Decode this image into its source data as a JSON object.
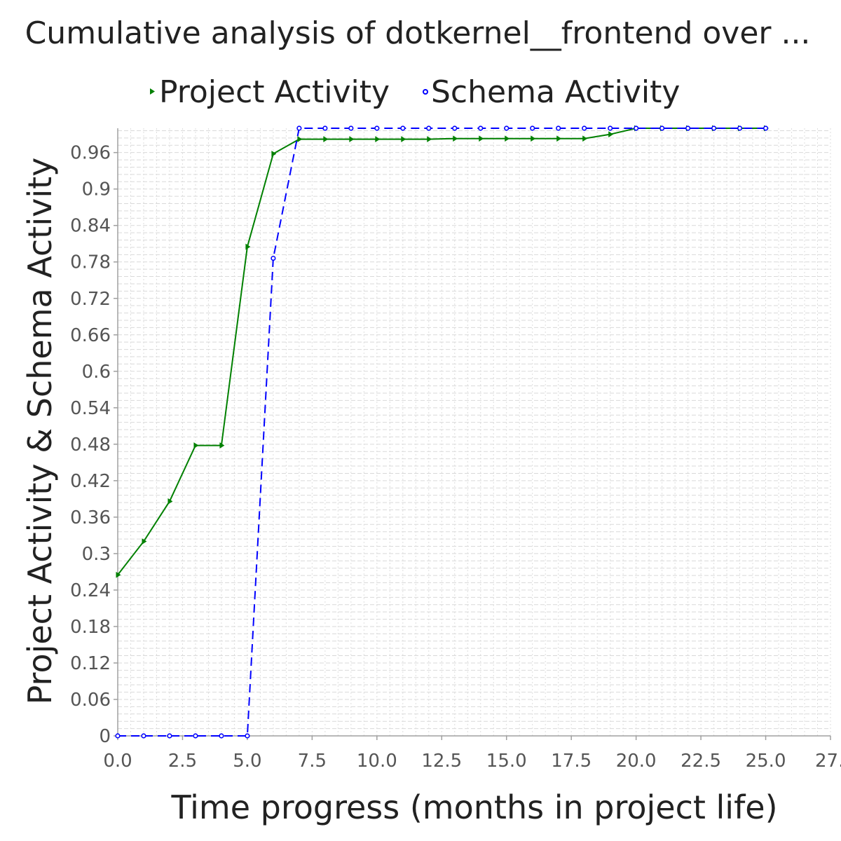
{
  "chart_data": {
    "type": "line",
    "title": "Cumulative analysis of dotkernel__frontend over ...",
    "xlabel": "Time progress (months in project life)",
    "ylabel": "Project Activity & Schema Activity",
    "xlim": [
      0,
      27.5
    ],
    "ylim": [
      0,
      1.0
    ],
    "x_ticks": [
      "0.0",
      "2.5",
      "5.0",
      "7.5",
      "10.0",
      "12.5",
      "15.0",
      "17.5",
      "20.0",
      "22.5",
      "25.0",
      "27."
    ],
    "y_ticks": [
      "0",
      "0.06",
      "0.12",
      "0.18",
      "0.24",
      "0.3",
      "0.36",
      "0.42",
      "0.48",
      "0.54",
      "0.6",
      "0.66",
      "0.72",
      "0.78",
      "0.84",
      "0.9",
      "0.96"
    ],
    "grid": true,
    "legend_position": "top",
    "series": [
      {
        "name": "Project Activity",
        "color": "#008000",
        "line_style": "solid",
        "marker": "triangle-right",
        "x": [
          0,
          1,
          2,
          3,
          4,
          5,
          6,
          7,
          8,
          9,
          10,
          11,
          12,
          13,
          14,
          15,
          16,
          17,
          18,
          19,
          20,
          21,
          22,
          23,
          24,
          25
        ],
        "values": [
          0.265,
          0.32,
          0.386,
          0.478,
          0.478,
          0.805,
          0.958,
          0.982,
          0.982,
          0.982,
          0.982,
          0.982,
          0.982,
          0.983,
          0.983,
          0.983,
          0.983,
          0.983,
          0.983,
          0.99,
          1.0,
          1.0,
          1.0,
          1.0,
          1.0,
          1.0
        ]
      },
      {
        "name": "Schema Activity",
        "color": "#0000ff",
        "line_style": "dashed",
        "marker": "circle",
        "x": [
          0,
          1,
          2,
          3,
          4,
          5,
          6,
          7,
          8,
          9,
          10,
          11,
          12,
          13,
          14,
          15,
          16,
          17,
          18,
          19,
          20,
          21,
          22,
          23,
          24,
          25
        ],
        "values": [
          0,
          0,
          0,
          0,
          0,
          0,
          0.786,
          1.0,
          1.0,
          1.0,
          1.0,
          1.0,
          1.0,
          1.0,
          1.0,
          1.0,
          1.0,
          1.0,
          1.0,
          1.0,
          1.0,
          1.0,
          1.0,
          1.0,
          1.0,
          1.0
        ]
      }
    ]
  }
}
